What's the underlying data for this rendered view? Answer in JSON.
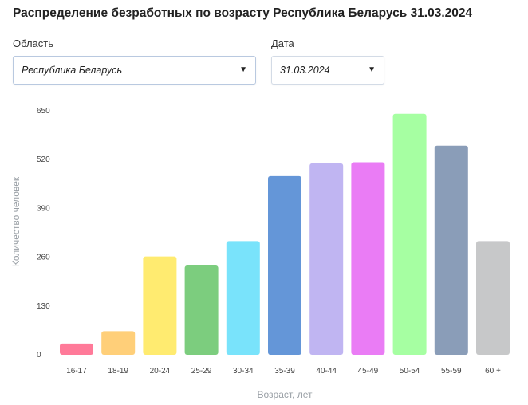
{
  "title": "Распределение безработных по возрасту Республика Беларусь 31.03.2024",
  "filters": {
    "region": {
      "label": "Область",
      "value": "Республика Беларусь"
    },
    "date": {
      "label": "Дата",
      "value": "31.03.2024"
    }
  },
  "icons": {
    "dropdown": "caret-down-icon"
  },
  "chart_data": {
    "type": "bar",
    "categories": [
      "16-17",
      "18-19",
      "20-24",
      "25-29",
      "30-34",
      "35-39",
      "40-44",
      "45-49",
      "50-54",
      "55-59",
      "60 +"
    ],
    "values": [
      30,
      63,
      262,
      238,
      303,
      476,
      510,
      513,
      642,
      557,
      303
    ],
    "colors": [
      "#ff7a99",
      "#ffcf79",
      "#ffeb70",
      "#7ccd7e",
      "#79e3fb",
      "#6496d8",
      "#c0b5f2",
      "#ea7cf5",
      "#a6ffa2",
      "#8a9db8",
      "#c7c8c9"
    ],
    "xlabel": "Возраст, лет",
    "ylabel": "Количество человек",
    "ylim": [
      0,
      650
    ],
    "yticks": [
      0,
      130,
      260,
      390,
      520,
      650
    ],
    "grid": false,
    "legend": "none"
  }
}
